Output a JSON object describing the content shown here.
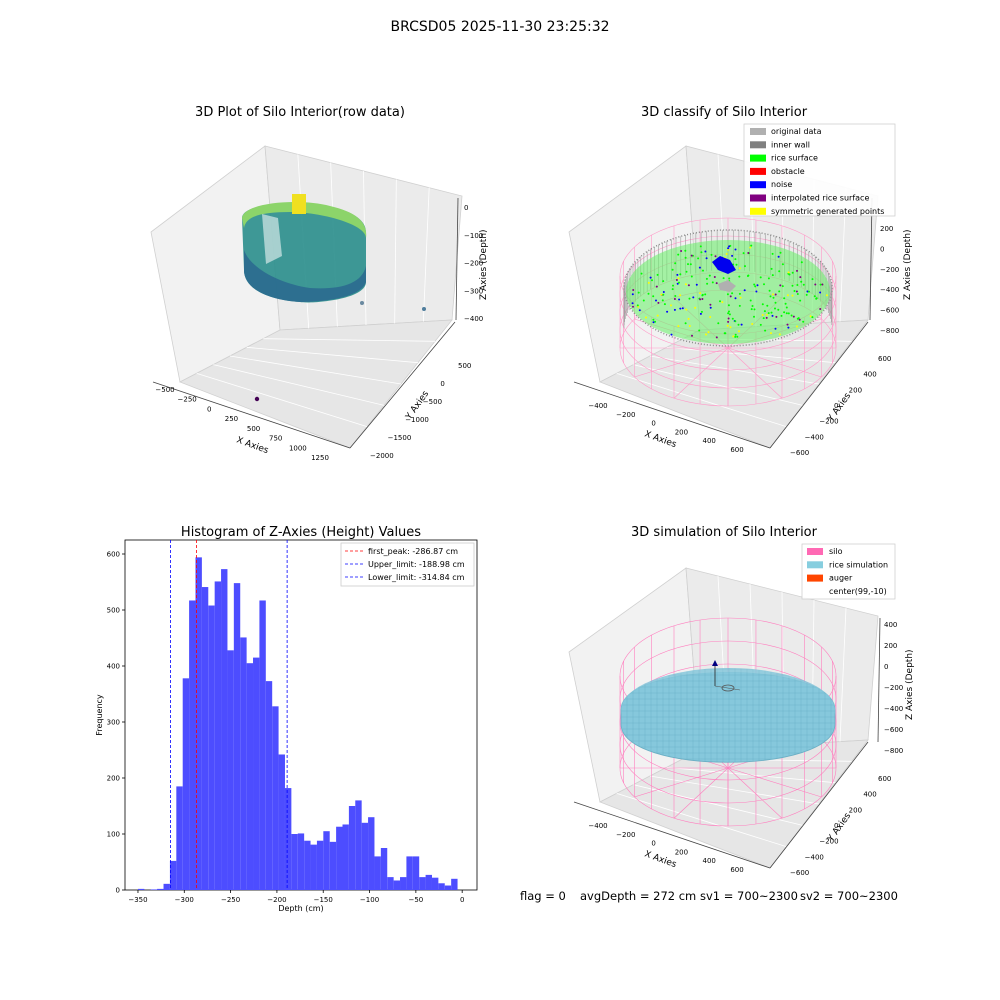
{
  "suptitle": "BRCSD05 2025-11-30 23:25:32",
  "status_line": {
    "flag": "flag = 0",
    "avg_depth": "avgDepth = 272 cm",
    "sv1": "sv1 = 700~2300",
    "sv2": "sv2 = 700~2300"
  },
  "colors": {
    "hist_bar": "#4d4dff",
    "first_peak_line": "#ff0000",
    "limit_line": "#0000ff",
    "silo": "#ff69b4",
    "rice_simulation": "#87cedf",
    "auger": "#ff4500",
    "original_data": "#b0b0b0",
    "inner_wall": "#808080",
    "rice_surface": "#00ff00",
    "obstacle": "#ff0000",
    "noise": "#0000ff",
    "interpolated_rice_surface": "#800080",
    "symmetric_generated_points": "#ffff00"
  },
  "chart_data": [
    {
      "type": "scatter",
      "projection": "3d",
      "title": "3D Plot of Silo Interior(row data)",
      "xlabel": "X Axies",
      "ylabel": "Y Axies",
      "zlabel": "Z Axies (Depth)",
      "x_ticks": [
        "−500",
        "−250",
        "0",
        "250",
        "500",
        "750",
        "1000",
        "1250"
      ],
      "y_ticks": [
        "500",
        "0",
        "−500",
        "−1000",
        "−1500",
        "−2000"
      ],
      "z_ticks": [
        "0",
        "−100",
        "−200",
        "−300",
        "−400"
      ],
      "colormap": "viridis"
    },
    {
      "type": "scatter",
      "projection": "3d",
      "title": "3D classify of Silo Interior",
      "xlabel": "X Axies",
      "ylabel": "Y Axies",
      "zlabel": "Z Axies (Depth)",
      "x_ticks": [
        "−400",
        "−200",
        "0",
        "200",
        "400",
        "600"
      ],
      "y_ticks": [
        "600",
        "400",
        "200",
        "0",
        "−200",
        "−400",
        "−600"
      ],
      "z_ticks": [
        "200",
        "0",
        "−200",
        "−400",
        "−600",
        "−800"
      ],
      "legend": [
        "original data",
        "inner wall",
        "rice surface",
        "obstacle",
        "noise",
        "interpolated rice surface",
        "symmetric generated points"
      ],
      "legend_position": "top-right"
    },
    {
      "type": "bar",
      "title": "Histogram of Z-Axies (Height) Values",
      "xlabel": "Depth (cm)",
      "ylabel": "Frequency",
      "xlim": [
        -364,
        16
      ],
      "ylim": [
        0,
        625
      ],
      "x_ticks": [
        -350,
        -300,
        -250,
        -200,
        -150,
        -100,
        -50,
        0
      ],
      "x_tick_labels": [
        "−350",
        "−300",
        "−250",
        "−200",
        "−150",
        "−100",
        "−50",
        "0"
      ],
      "y_ticks": [
        0,
        100,
        200,
        300,
        400,
        500,
        600
      ],
      "y_tick_labels": [
        "0",
        "100",
        "200",
        "300",
        "400",
        "500",
        "600"
      ],
      "bin_start": -350,
      "bin_width": 6.9,
      "values": [
        2,
        0,
        1,
        2,
        11,
        52,
        185,
        378,
        517,
        594,
        541,
        508,
        551,
        573,
        428,
        548,
        451,
        405,
        415,
        517,
        373,
        328,
        242,
        182,
        100,
        101,
        88,
        81,
        88,
        105,
        86,
        113,
        117,
        150,
        160,
        120,
        130,
        60,
        75,
        23,
        17,
        23,
        60,
        60,
        23,
        27,
        22,
        12,
        8,
        20
      ],
      "vlines": [
        {
          "x": -286.87,
          "label": "first_peak: -286.87 cm",
          "color": "#ff0000"
        },
        {
          "x": -188.98,
          "label": "Upper_limit: -188.98 cm",
          "color": "#0000ff"
        },
        {
          "x": -314.84,
          "label": "Lower_limit: -314.84 cm",
          "color": "#0000ff"
        }
      ],
      "legend_position": "top-right"
    },
    {
      "type": "scatter",
      "projection": "3d",
      "title": "3D simulation of Silo Interior",
      "xlabel": "X Axies",
      "ylabel": "Y Axies",
      "zlabel": "Z Axies (Depth)",
      "x_ticks": [
        "−400",
        "−200",
        "0",
        "200",
        "400",
        "600"
      ],
      "y_ticks": [
        "600",
        "400",
        "200",
        "0",
        "−200",
        "−400",
        "−600"
      ],
      "z_ticks": [
        "400",
        "200",
        "0",
        "−200",
        "−400",
        "−600",
        "−800"
      ],
      "legend": [
        "silo",
        "rice simulation",
        "auger",
        "center(99,-10)"
      ],
      "legend_position": "top-right"
    }
  ]
}
